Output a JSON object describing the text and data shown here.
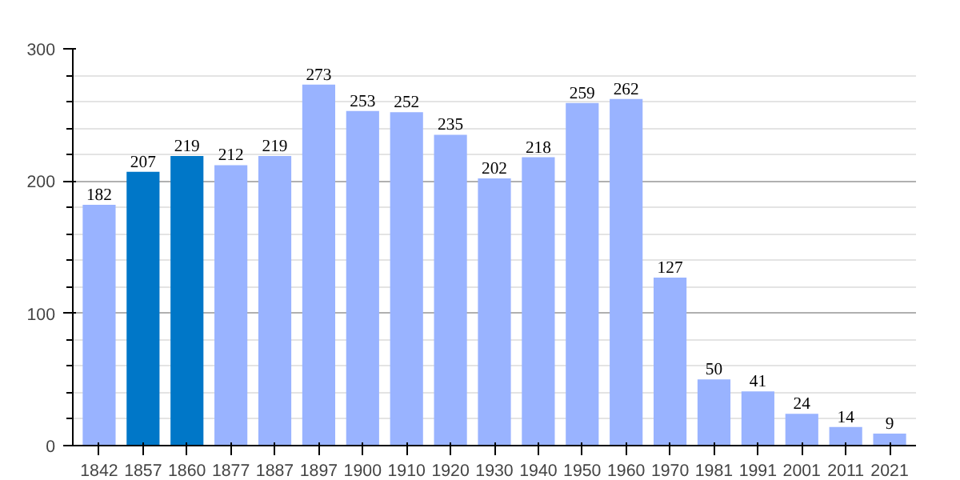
{
  "chart_data": {
    "type": "bar",
    "categories": [
      "1842",
      "1857",
      "1860",
      "1877",
      "1887",
      "1897",
      "1900",
      "1910",
      "1920",
      "1930",
      "1940",
      "1950",
      "1960",
      "1970",
      "1981",
      "1991",
      "2001",
      "2011",
      "2021"
    ],
    "values": [
      182,
      207,
      219,
      212,
      219,
      273,
      253,
      252,
      235,
      202,
      218,
      259,
      262,
      127,
      50,
      41,
      24,
      14,
      9
    ],
    "colors": [
      "#99b3ff",
      "#0077c8",
      "#0077c8",
      "#99b3ff",
      "#99b3ff",
      "#99b3ff",
      "#99b3ff",
      "#99b3ff",
      "#99b3ff",
      "#99b3ff",
      "#99b3ff",
      "#99b3ff",
      "#99b3ff",
      "#99b3ff",
      "#99b3ff",
      "#99b3ff",
      "#99b3ff",
      "#99b3ff",
      "#99b3ff"
    ],
    "ylim": [
      0,
      300
    ],
    "yticks": [
      0,
      100,
      200,
      300
    ],
    "grid": "y",
    "data_labels": true
  }
}
